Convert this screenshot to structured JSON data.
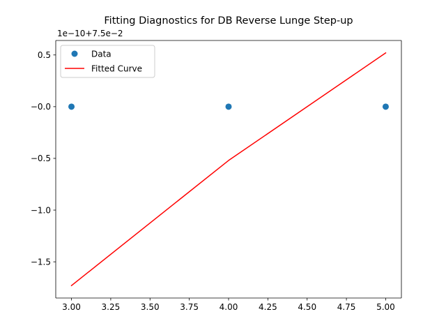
{
  "chart_data": {
    "type": "line",
    "title": "Fitting Diagnostics for DB Reverse Lunge Step-up",
    "xlabel": "",
    "ylabel": "",
    "y_offset_label": "1e−10+7.5e−2",
    "xlim": [
      2.9,
      5.1
    ],
    "ylim": [
      -1.85,
      0.64
    ],
    "x_ticks": [
      3.0,
      3.25,
      3.5,
      3.75,
      4.0,
      4.25,
      4.5,
      4.75,
      5.0
    ],
    "x_tick_labels": [
      "3.00",
      "3.25",
      "3.50",
      "3.75",
      "4.00",
      "4.25",
      "4.50",
      "4.75",
      "5.00"
    ],
    "y_ticks": [
      0.5,
      0.0,
      -0.5,
      -1.0,
      -1.5
    ],
    "y_tick_labels": [
      "0.5",
      "−0.0",
      "−0.5",
      "−1.0",
      "−1.5"
    ],
    "grid": false,
    "legend_position": "top-left",
    "series": [
      {
        "name": "Data",
        "kind": "scatter",
        "color": "#1f77b4",
        "x": [
          3,
          4,
          5
        ],
        "y": [
          0.0,
          0.0,
          0.0
        ]
      },
      {
        "name": "Fitted Curve",
        "kind": "line",
        "color": "#ff0000",
        "x": [
          3,
          4,
          5
        ],
        "y": [
          -1.73,
          -0.52,
          0.52
        ]
      }
    ]
  }
}
